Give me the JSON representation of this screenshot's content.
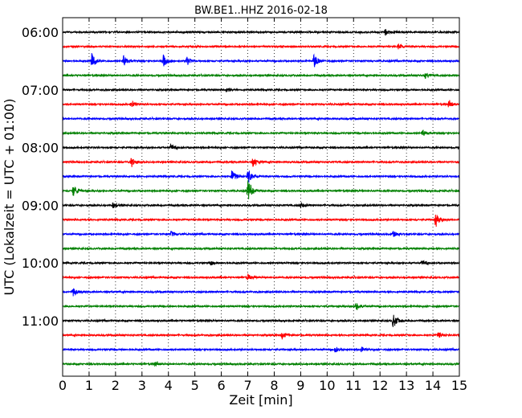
{
  "chart_data": {
    "type": "line",
    "title": "BW.BE1..HHZ 2016-02-18",
    "xlabel": "Zeit  [min]",
    "ylabel": "UTC (Lokalzeit = UTC + 01:00)",
    "xlim": [
      0,
      15
    ],
    "x_ticks": [
      "0",
      "1",
      "2",
      "3",
      "4",
      "5",
      "6",
      "7",
      "8",
      "9",
      "10",
      "11",
      "12",
      "13",
      "14",
      "15"
    ],
    "y_tick_labels": [
      "06:00",
      "07:00",
      "08:00",
      "09:00",
      "10:00",
      "11:00"
    ],
    "trace_interval_min": 15,
    "trace_colors": [
      "#000000",
      "#ff0000",
      "#0000ff",
      "#008000"
    ],
    "grid": "vertical dotted at each minute",
    "series": [
      {
        "start": "06:00",
        "events": [
          {
            "t": 12.2,
            "amp": 0.4
          }
        ]
      },
      {
        "start": "06:15",
        "events": [
          {
            "t": 12.7,
            "amp": 0.4
          }
        ]
      },
      {
        "start": "06:30",
        "events": [
          {
            "t": 1.1,
            "amp": 1.0
          },
          {
            "t": 2.3,
            "amp": 0.7
          },
          {
            "t": 3.8,
            "amp": 0.9
          },
          {
            "t": 4.7,
            "amp": 0.6
          },
          {
            "t": 9.5,
            "amp": 1.0
          }
        ]
      },
      {
        "start": "06:45",
        "events": [
          {
            "t": 13.7,
            "amp": 0.4
          }
        ]
      },
      {
        "start": "07:00",
        "events": [
          {
            "t": 6.2,
            "amp": 0.3
          }
        ]
      },
      {
        "start": "07:15",
        "events": [
          {
            "t": 2.6,
            "amp": 0.5
          },
          {
            "t": 14.6,
            "amp": 0.5
          }
        ]
      },
      {
        "start": "07:30",
        "events": []
      },
      {
        "start": "07:45",
        "events": [
          {
            "t": 13.6,
            "amp": 0.4
          }
        ]
      },
      {
        "start": "08:00",
        "events": [
          {
            "t": 4.1,
            "amp": 0.5
          }
        ]
      },
      {
        "start": "08:15",
        "events": [
          {
            "t": 2.6,
            "amp": 0.7
          },
          {
            "t": 7.2,
            "amp": 0.7
          }
        ]
      },
      {
        "start": "08:30",
        "events": [
          {
            "t": 6.4,
            "amp": 0.9
          },
          {
            "t": 7.0,
            "amp": 1.0
          }
        ]
      },
      {
        "start": "08:45",
        "events": [
          {
            "t": 0.4,
            "amp": 0.8
          },
          {
            "t": 7.0,
            "amp": 1.5
          }
        ]
      },
      {
        "start": "09:00",
        "events": [
          {
            "t": 1.9,
            "amp": 0.4
          },
          {
            "t": 9.0,
            "amp": 0.4
          }
        ]
      },
      {
        "start": "09:15",
        "events": [
          {
            "t": 14.1,
            "amp": 1.0
          }
        ]
      },
      {
        "start": "09:30",
        "events": [
          {
            "t": 4.1,
            "amp": 0.4
          },
          {
            "t": 12.5,
            "amp": 0.4
          }
        ]
      },
      {
        "start": "09:45",
        "events": []
      },
      {
        "start": "10:00",
        "events": [
          {
            "t": 5.6,
            "amp": 0.4
          },
          {
            "t": 13.6,
            "amp": 0.4
          }
        ]
      },
      {
        "start": "10:15",
        "events": [
          {
            "t": 7.0,
            "amp": 0.4
          }
        ]
      },
      {
        "start": "10:30",
        "events": [
          {
            "t": 0.4,
            "amp": 0.6
          }
        ]
      },
      {
        "start": "10:45",
        "events": [
          {
            "t": 11.1,
            "amp": 0.6
          }
        ]
      },
      {
        "start": "11:00",
        "events": [
          {
            "t": 12.5,
            "amp": 1.0
          }
        ]
      },
      {
        "start": "11:15",
        "events": [
          {
            "t": 8.3,
            "amp": 0.5
          },
          {
            "t": 14.2,
            "amp": 0.4
          }
        ]
      },
      {
        "start": "11:30",
        "events": [
          {
            "t": 10.3,
            "amp": 0.5
          },
          {
            "t": 11.3,
            "amp": 0.4
          }
        ]
      },
      {
        "start": "11:45",
        "events": [
          {
            "t": 3.5,
            "amp": 0.3
          }
        ]
      }
    ]
  }
}
